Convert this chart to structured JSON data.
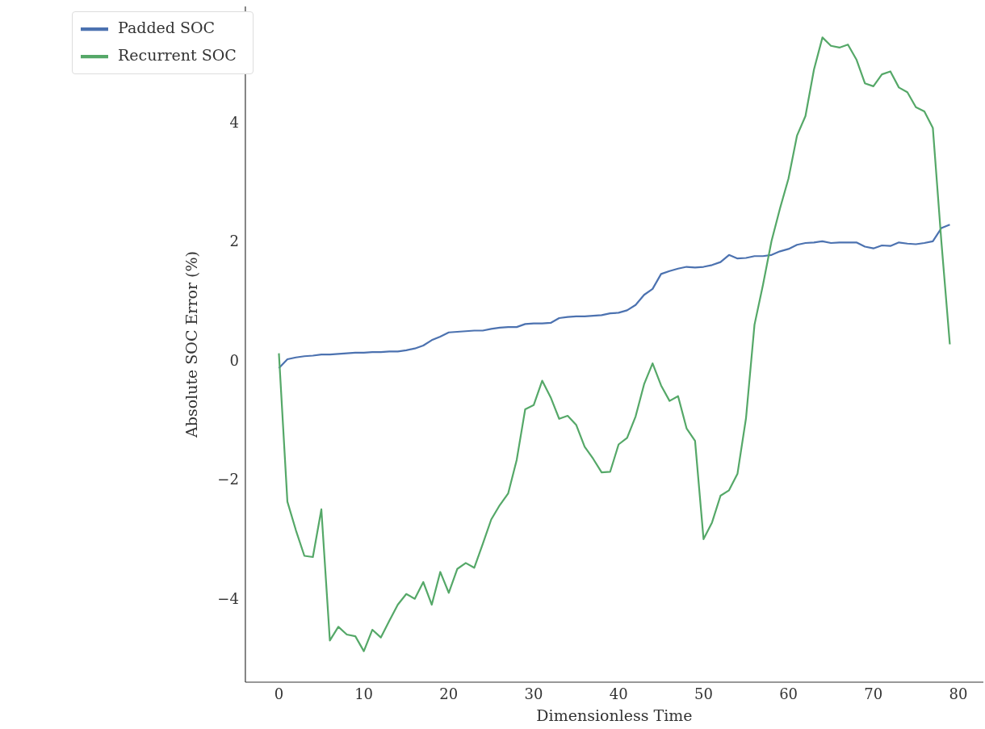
{
  "chart_data": {
    "type": "line",
    "xlabel": "Dimensionless Time",
    "ylabel": "Absolute SOC Error (%)",
    "x": [
      0,
      1,
      2,
      3,
      4,
      5,
      6,
      7,
      8,
      9,
      10,
      11,
      12,
      13,
      14,
      15,
      16,
      17,
      18,
      19,
      20,
      21,
      22,
      23,
      24,
      25,
      26,
      27,
      28,
      29,
      30,
      31,
      32,
      33,
      34,
      35,
      36,
      37,
      38,
      39,
      40,
      41,
      42,
      43,
      44,
      45,
      46,
      47,
      48,
      49,
      50,
      51,
      52,
      53,
      54,
      55,
      56,
      57,
      58,
      59,
      60,
      61,
      62,
      63,
      64,
      65,
      66,
      67,
      68,
      69,
      70,
      71,
      72,
      73,
      74,
      75,
      76,
      77,
      78,
      79
    ],
    "series": [
      {
        "name": "Padded SOC",
        "color": "#4c72b0",
        "values": [
          -0.13,
          0.02,
          0.05,
          0.07,
          0.08,
          0.1,
          0.1,
          0.11,
          0.12,
          0.13,
          0.13,
          0.14,
          0.14,
          0.15,
          0.15,
          0.17,
          0.2,
          0.25,
          0.34,
          0.4,
          0.47,
          0.48,
          0.49,
          0.5,
          0.5,
          0.53,
          0.55,
          0.56,
          0.56,
          0.61,
          0.62,
          0.62,
          0.63,
          0.71,
          0.73,
          0.74,
          0.74,
          0.75,
          0.76,
          0.79,
          0.8,
          0.84,
          0.93,
          1.1,
          1.2,
          1.45,
          1.5,
          1.54,
          1.57,
          1.56,
          1.57,
          1.6,
          1.65,
          1.77,
          1.71,
          1.72,
          1.75,
          1.75,
          1.77,
          1.83,
          1.87,
          1.94,
          1.97,
          1.98,
          2.0,
          1.97,
          1.98,
          1.98,
          1.98,
          1.91,
          1.88,
          1.93,
          1.92,
          1.98,
          1.96,
          1.95,
          1.97,
          2.0,
          2.22,
          2.28
        ]
      },
      {
        "name": "Recurrent SOC",
        "color": "#55a868",
        "values": [
          0.12,
          -2.37,
          -2.85,
          -3.28,
          -3.3,
          -2.5,
          -4.7,
          -4.47,
          -4.6,
          -4.63,
          -4.88,
          -4.52,
          -4.65,
          -4.37,
          -4.1,
          -3.92,
          -4.0,
          -3.72,
          -4.1,
          -3.55,
          -3.9,
          -3.5,
          -3.4,
          -3.48,
          -3.08,
          -2.67,
          -2.43,
          -2.23,
          -1.67,
          -0.82,
          -0.75,
          -0.34,
          -0.62,
          -0.98,
          -0.93,
          -1.08,
          -1.45,
          -1.65,
          -1.88,
          -1.87,
          -1.41,
          -1.3,
          -0.94,
          -0.4,
          -0.05,
          -0.42,
          -0.68,
          -0.6,
          -1.14,
          -1.35,
          -3.0,
          -2.72,
          -2.27,
          -2.18,
          -1.9,
          -0.97,
          0.6,
          1.27,
          2.0,
          2.55,
          3.05,
          3.77,
          4.1,
          4.88,
          5.42,
          5.28,
          5.25,
          5.3,
          5.05,
          4.65,
          4.6,
          4.8,
          4.85,
          4.58,
          4.5,
          4.25,
          4.18,
          3.9,
          2.0,
          0.27
        ]
      }
    ],
    "xlim": [
      -3.95,
      82.95
    ],
    "xticks": [
      0,
      10,
      20,
      30,
      40,
      50,
      60,
      70,
      80
    ],
    "ylim": [
      -5.4,
      5.94
    ],
    "yticks": [
      -4,
      -2,
      0,
      2,
      4
    ],
    "grid": false,
    "legend": "top left",
    "marker": "none",
    "line_style": "solid"
  }
}
